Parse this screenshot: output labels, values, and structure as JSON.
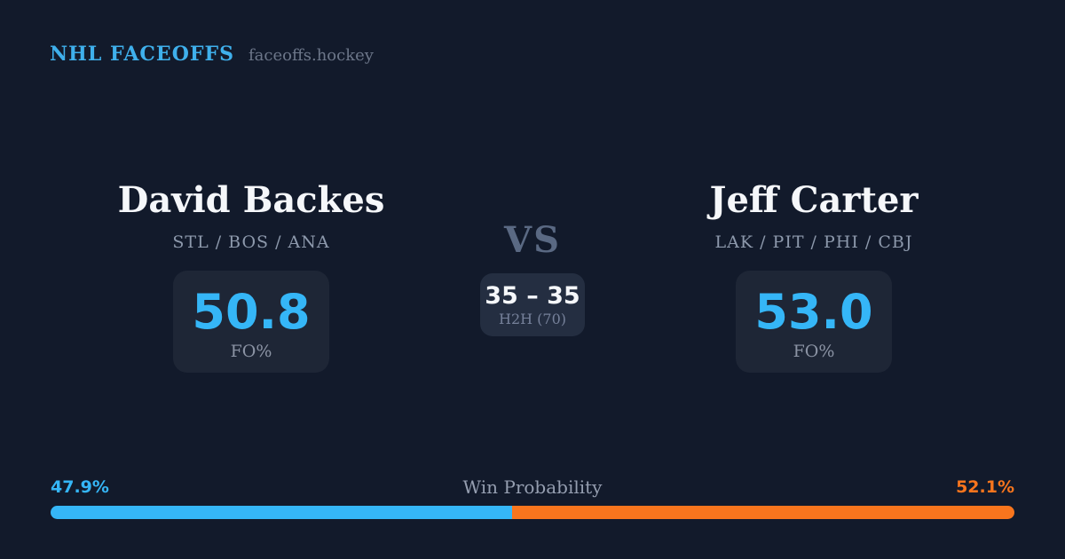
{
  "header": {
    "brand": "NHL FACEOFFS",
    "site": "faceoffs.hockey"
  },
  "matchup": {
    "vs_label": "VS",
    "h2h": {
      "score": "35 – 35",
      "label": "H2H (70)"
    },
    "players": [
      {
        "name": "David Backes",
        "teams": "STL / BOS / ANA",
        "fo_pct": "50.8",
        "stat_label": "FO%"
      },
      {
        "name": "Jeff Carter",
        "teams": "LAK / PIT / PHI / CBJ",
        "fo_pct": "53.0",
        "stat_label": "FO%"
      }
    ]
  },
  "win_probability": {
    "label": "Win Probability",
    "left_pct": "47.9%",
    "right_pct": "52.1%",
    "left_value": 47.9,
    "right_value": 52.1
  },
  "colors": {
    "background": "#121a2b",
    "card": "#1e2636",
    "accent_blue": "#35b6f7",
    "accent_orange": "#f8751d",
    "brand_blue": "#3fb0ec"
  },
  "chart_data": {
    "type": "bar",
    "subtype": "horizontal-stacked-probability",
    "title": "Win Probability",
    "categories": [
      "David Backes",
      "Jeff Carter"
    ],
    "values": [
      47.9,
      52.1
    ],
    "units": "%",
    "colors": [
      "#35b6f7",
      "#f8751d"
    ],
    "legend_position": "above-bar-ends",
    "related_stats": {
      "faceoff_pct": {
        "David Backes": 50.8,
        "Jeff Carter": 53.0
      },
      "head_to_head": {
        "David Backes": 35,
        "Jeff Carter": 35,
        "total_faceoffs": 70
      }
    }
  }
}
